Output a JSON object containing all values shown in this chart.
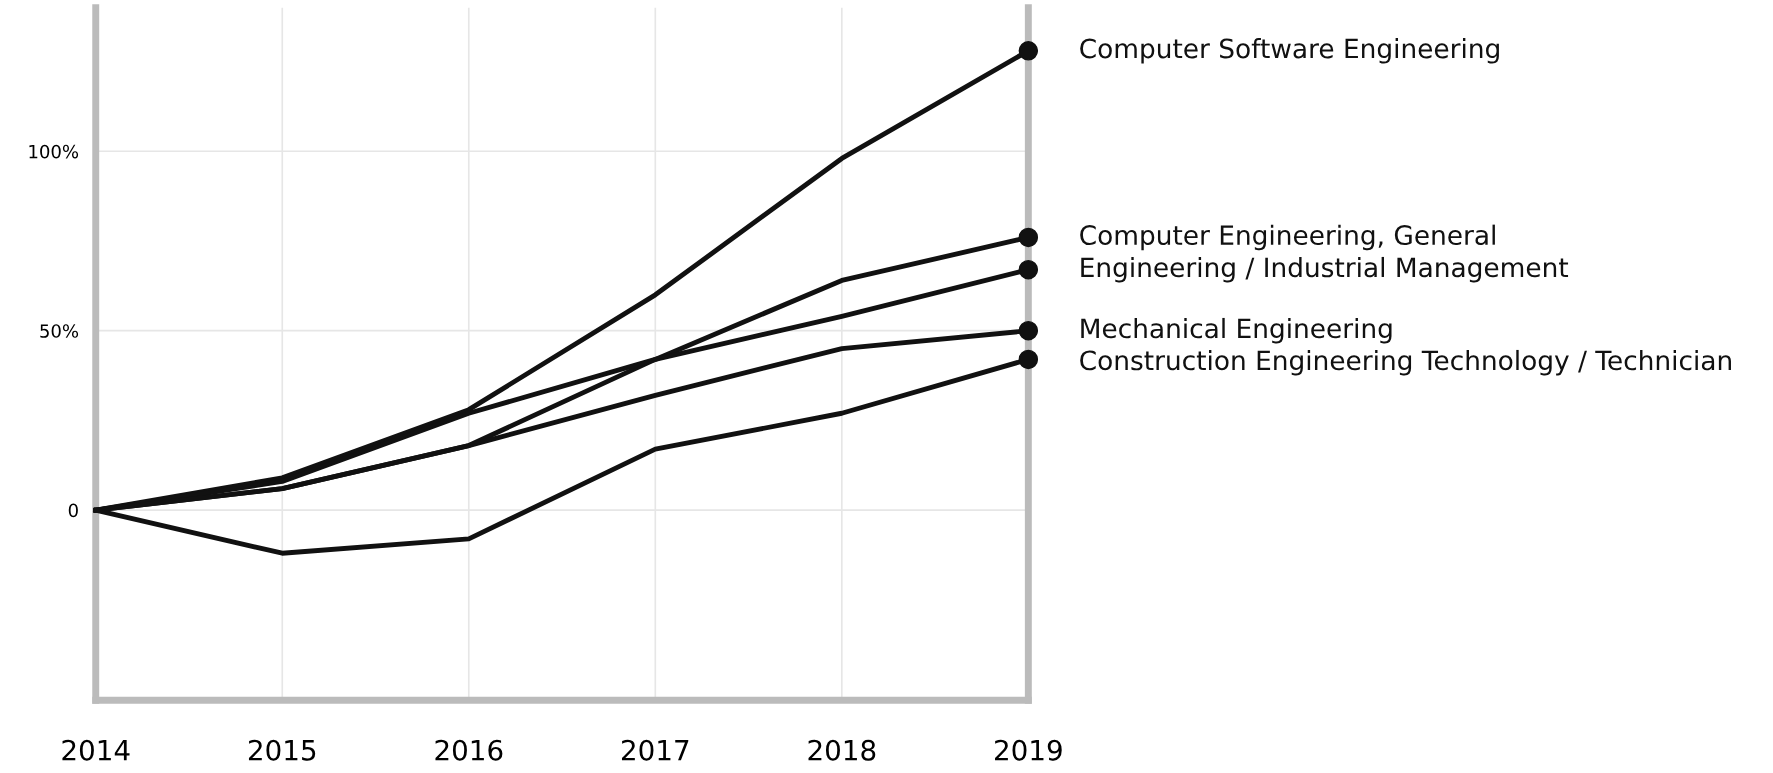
{
  "chart_data": {
    "type": "line",
    "x": [
      2014,
      2015,
      2016,
      2017,
      2018,
      2019
    ],
    "series": [
      {
        "name": "Computer Software Engineering",
        "color": "#111111",
        "values": [
          0,
          9,
          28,
          60,
          98,
          128
        ]
      },
      {
        "name": "Computer Engineering, General",
        "color": "#111111",
        "values": [
          0,
          6,
          18,
          42,
          64,
          76
        ]
      },
      {
        "name": "Engineering / Industrial Management",
        "color": "#111111",
        "values": [
          0,
          8,
          27,
          42,
          54,
          67
        ]
      },
      {
        "name": "Mechanical Engineering",
        "color": "#111111",
        "values": [
          0,
          6,
          18,
          32,
          45,
          50
        ]
      },
      {
        "name": "Construction Engineering Technology / Technician",
        "color": "#111111",
        "values": [
          0,
          -12,
          -8,
          17,
          27,
          42
        ]
      }
    ],
    "xlim": [
      2014,
      2019
    ],
    "xticks": [
      2014,
      2015,
      2016,
      2017,
      2018,
      2019
    ],
    "ylim": [
      -53,
      140
    ],
    "yticks": [
      {
        "value": 0,
        "label": "0"
      },
      {
        "value": 50,
        "label": "50%"
      },
      {
        "value": 100,
        "label": "100%"
      }
    ],
    "grid": true,
    "line_style": "solid",
    "legend": "right"
  }
}
